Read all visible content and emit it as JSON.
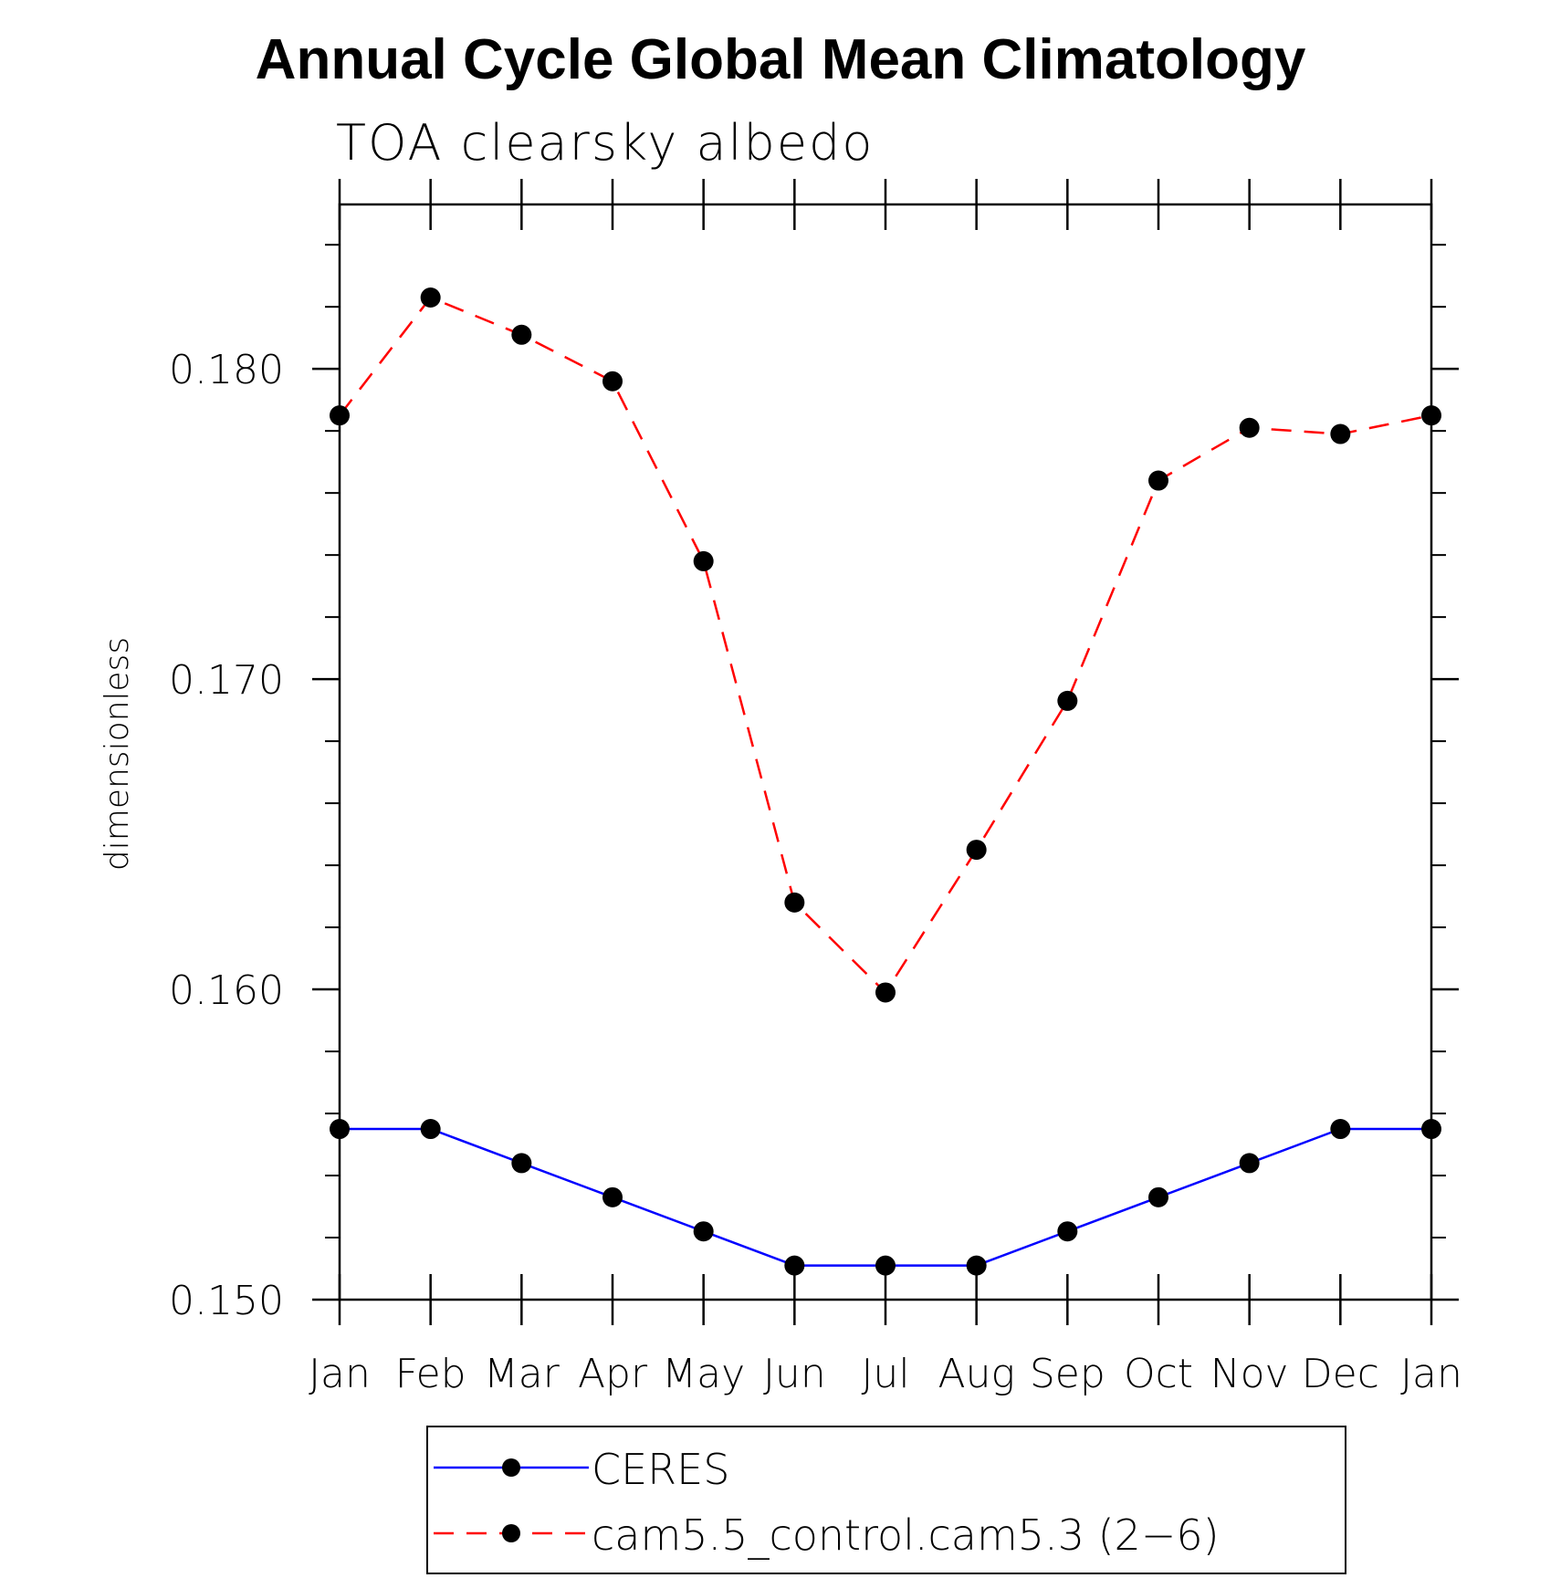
{
  "chart_data": {
    "type": "line",
    "title": "Annual Cycle Global Mean Climatology",
    "subtitle": "TOA clearsky albedo",
    "xlabel": "",
    "ylabel": "dimensionless",
    "categories": [
      "Jan",
      "Feb",
      "Mar",
      "Apr",
      "May",
      "Jun",
      "Jul",
      "Aug",
      "Sep",
      "Oct",
      "Nov",
      "Dec",
      "Jan"
    ],
    "ylim": [
      0.15,
      0.1853
    ],
    "yticks": [
      0.15,
      0.16,
      0.17,
      0.18
    ],
    "ytick_labels": [
      "0.150",
      "0.160",
      "0.170",
      "0.180"
    ],
    "yminor_step": 0.002,
    "grid": false,
    "legend_position": "bottom",
    "series": [
      {
        "name": "CERES",
        "color": "#0000ff",
        "line_style": "solid",
        "marker": "filled-circle",
        "values": [
          0.1555,
          0.1555,
          0.1544,
          0.1533,
          0.1522,
          0.1511,
          0.1511,
          0.1511,
          0.1522,
          0.1533,
          0.1544,
          0.1555,
          0.1555
        ]
      },
      {
        "name": "cam5.5_control.cam5.3 (2-6)",
        "color": "#ff0000",
        "line_style": "dashed",
        "marker": "filled-circle",
        "values": [
          0.1785,
          0.1823,
          0.1811,
          0.1796,
          0.1738,
          0.1628,
          0.1599,
          0.1645,
          0.1693,
          0.1764,
          0.1781,
          0.1779,
          0.1785
        ]
      }
    ]
  },
  "legend": {
    "entries": [
      "CERES",
      "cam5.5_control.cam5.3 (2−6)"
    ]
  }
}
